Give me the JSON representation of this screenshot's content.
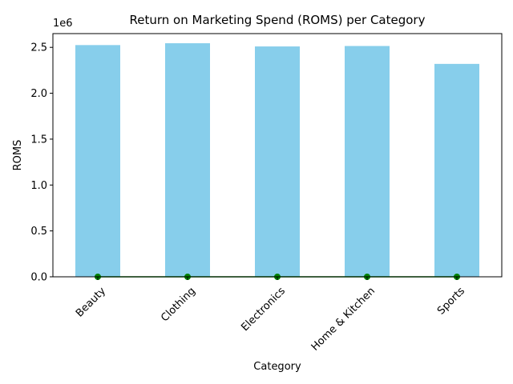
{
  "chart_data": {
    "type": "bar",
    "title": "Return on Marketing Spend (ROMS) per Category",
    "xlabel": "Category",
    "ylabel": "ROMS",
    "offset_label": "1e6",
    "categories": [
      "Beauty",
      "Clothing",
      "Electronics",
      "Home & Kitchen",
      "Sports"
    ],
    "values": [
      2.525,
      2.545,
      2.51,
      2.515,
      2.32
    ],
    "ylim": [
      0,
      2.65
    ],
    "yticks": [
      0.0,
      0.5,
      1.0,
      1.5,
      2.0,
      2.5
    ],
    "ytick_labels": [
      "0.0",
      "0.5",
      "1.0",
      "1.5",
      "2.0",
      "2.5"
    ],
    "overlay_line": {
      "values": [
        0,
        0,
        0,
        0,
        0
      ],
      "color": "#008000",
      "marker": "circle"
    },
    "bar_color": "#87ceeb",
    "grid": false,
    "legend": "none"
  }
}
